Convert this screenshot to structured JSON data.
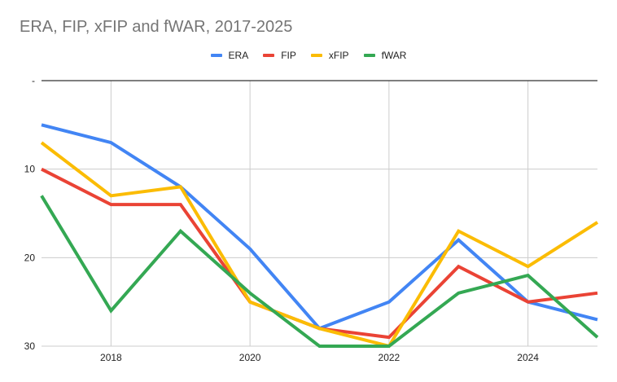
{
  "chart_data": {
    "type": "line",
    "title": "ERA, FIP, xFIP and fWAR, 2017-2025",
    "xlabel": "",
    "ylabel": "",
    "x": [
      2017,
      2018,
      2019,
      2020,
      2021,
      2022,
      2023,
      2024,
      2025
    ],
    "x_ticks": [
      "2018",
      "2020",
      "2022",
      "2024"
    ],
    "x_tick_values": [
      2018,
      2020,
      2022,
      2024
    ],
    "y_ticks": [
      "-",
      "10",
      "20",
      "30"
    ],
    "y_tick_values": [
      0,
      10,
      20,
      30
    ],
    "ylim": [
      0,
      30
    ],
    "y_reversed": true,
    "grid": true,
    "legend_position": "top",
    "series": [
      {
        "name": "ERA",
        "color": "#4285F4",
        "values": [
          5,
          7,
          12,
          19,
          28,
          25,
          18,
          25,
          27
        ]
      },
      {
        "name": "FIP",
        "color": "#EA4335",
        "values": [
          10,
          14,
          14,
          25,
          28,
          29,
          21,
          25,
          24
        ]
      },
      {
        "name": "xFIP",
        "color": "#FBBC04",
        "values": [
          7,
          13,
          12,
          25,
          28,
          30,
          17,
          21,
          16
        ]
      },
      {
        "name": "fWAR",
        "color": "#34A853",
        "values": [
          13,
          26,
          17,
          24,
          30,
          30,
          24,
          22,
          29
        ]
      }
    ]
  }
}
